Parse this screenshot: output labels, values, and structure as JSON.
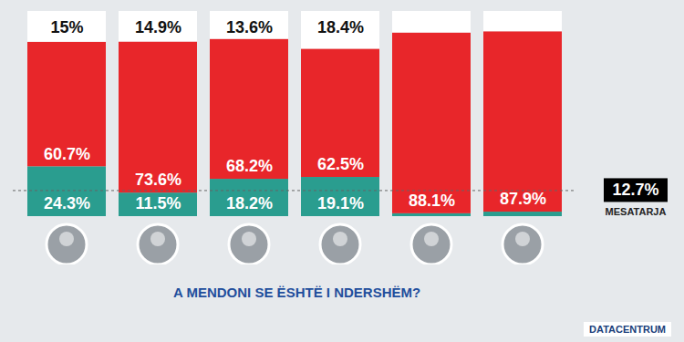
{
  "chart_data": {
    "type": "bar",
    "stacked": true,
    "data_labels": true,
    "tick_labels": false,
    "title": "A MENDONI SE ËSHTË I NDERSHËM?",
    "source": "DATACENTRUM",
    "ylim": [
      0,
      100
    ],
    "categories": [
      null,
      null,
      null,
      null,
      null,
      null
    ],
    "series": [
      {
        "color": "#2a9d8f",
        "values": [
          24.3,
          11.5,
          18.2,
          19.1,
          1.4,
          2.2
        ],
        "value_labels": [
          "24.3%",
          "11.5%",
          "18.2%",
          "19.1%",
          null,
          null
        ]
      },
      {
        "color": "#e8262a",
        "values": [
          60.7,
          73.6,
          68.2,
          62.5,
          88.1,
          87.9
        ],
        "value_labels": [
          "60.7%",
          "73.6%",
          "68.2%",
          "62.5%",
          "88.1%",
          "87.9%"
        ]
      },
      {
        "color": "#ffffff",
        "values": [
          15,
          14.9,
          13.6,
          18.4,
          10.5,
          9.9
        ],
        "value_labels": [
          "15%",
          "14.9%",
          "13.6%",
          "18.4%",
          null,
          null
        ]
      }
    ],
    "average": {
      "value": 12.7,
      "label": "12.7%",
      "name": "MESATARJA"
    }
  }
}
